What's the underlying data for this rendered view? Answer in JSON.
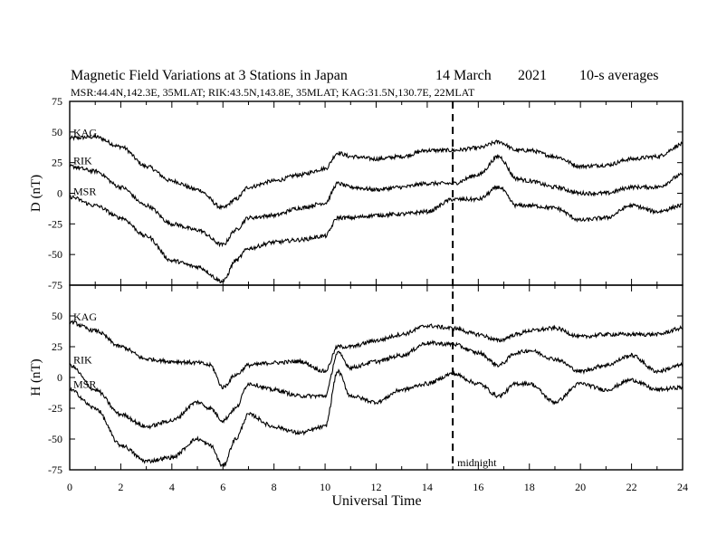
{
  "chart_data": {
    "type": "line",
    "title": "Magnetic Field Variations at 3 Stations in Japan",
    "date": "14 March",
    "year": "2021",
    "averaging": "10-s averages",
    "subtitle": "MSR:44.4N,142.3E, 35MLAT;  RIK:43.5N,143.8E, 35MLAT;  KAG:31.5N,130.7E, 22MLAT",
    "xlabel": "Universal Time",
    "xlim": [
      0,
      24
    ],
    "xticks": [
      "0",
      "2",
      "4",
      "6",
      "8",
      "10",
      "12",
      "14",
      "16",
      "18",
      "20",
      "22",
      "24"
    ],
    "marker": {
      "x": 15,
      "label": "midnight",
      "style": "dashed"
    },
    "line_color": "#000000",
    "panels": [
      {
        "ylabel": "D (nT)",
        "ylim": [
          -75,
          75
        ],
        "yticks": [
          "75",
          "50",
          "25",
          "0",
          "-25",
          "-50",
          "-75"
        ],
        "series": [
          {
            "name": "KAG",
            "x": [
              0,
              1,
              2,
              3,
              4,
              5,
              6,
              6.5,
              7,
              8,
              9,
              10,
              10.5,
              11,
              12,
              13,
              14,
              15,
              16,
              16.8,
              17.5,
              18,
              19,
              20,
              21,
              22,
              23,
              24
            ],
            "values": [
              45,
              46,
              38,
              22,
              10,
              3,
              -12,
              -5,
              5,
              10,
              15,
              20,
              33,
              30,
              28,
              30,
              35,
              35,
              37,
              42,
              35,
              35,
              30,
              22,
              23,
              28,
              30,
              40
            ]
          },
          {
            "name": "RIK",
            "x": [
              0,
              1,
              2,
              3,
              4,
              5,
              6,
              6.5,
              7,
              8,
              9,
              10,
              10.5,
              11,
              12,
              13,
              14,
              15,
              16,
              16.8,
              17.5,
              18,
              19,
              20,
              21,
              22,
              23,
              24
            ],
            "values": [
              22,
              18,
              5,
              -10,
              -25,
              -30,
              -42,
              -30,
              -20,
              -18,
              -12,
              -8,
              8,
              5,
              3,
              5,
              8,
              8,
              15,
              30,
              12,
              10,
              5,
              0,
              0,
              5,
              5,
              15
            ]
          },
          {
            "name": "MSR",
            "x": [
              0,
              1,
              2,
              3,
              4,
              5,
              6,
              6.5,
              7,
              8,
              9,
              10,
              10.5,
              11,
              12,
              13,
              14,
              15,
              16,
              16.8,
              17.5,
              18,
              19,
              20,
              21,
              22,
              23,
              24
            ],
            "values": [
              -3,
              -10,
              -20,
              -35,
              -55,
              -60,
              -72,
              -55,
              -45,
              -40,
              -38,
              -35,
              -20,
              -20,
              -18,
              -17,
              -15,
              -5,
              -5,
              5,
              -10,
              -10,
              -12,
              -22,
              -20,
              -10,
              -15,
              -10
            ]
          }
        ]
      },
      {
        "ylabel": "H (nT)",
        "ylim": [
          -75,
          75
        ],
        "yticks": [
          "50",
          "25",
          "0",
          "-25",
          "-50",
          "-75"
        ],
        "series": [
          {
            "name": "KAG",
            "x": [
              0,
              1,
              2,
              3,
              4,
              5,
              5.5,
              6,
              6.5,
              7,
              8,
              9,
              10,
              10.5,
              11,
              12,
              13,
              14,
              15,
              16,
              16.8,
              17.5,
              18,
              19,
              20,
              21,
              22,
              23,
              24
            ],
            "values": [
              45,
              38,
              25,
              15,
              13,
              12,
              10,
              -8,
              2,
              10,
              12,
              13,
              5,
              25,
              25,
              30,
              35,
              42,
              40,
              35,
              30,
              35,
              38,
              40,
              33,
              35,
              35,
              35,
              40
            ]
          },
          {
            "name": "RIK",
            "x": [
              0,
              1,
              2,
              3,
              4,
              5,
              5.5,
              6,
              6.5,
              7,
              8,
              9,
              10,
              10.5,
              11,
              12,
              13,
              14,
              15,
              16,
              16.8,
              17.5,
              18,
              19,
              20,
              21,
              22,
              23,
              24
            ],
            "values": [
              10,
              -10,
              -30,
              -40,
              -35,
              -20,
              -25,
              -35,
              -25,
              -5,
              -10,
              -15,
              -15,
              20,
              8,
              13,
              18,
              28,
              27,
              20,
              10,
              20,
              22,
              15,
              5,
              10,
              18,
              5,
              10
            ]
          },
          {
            "name": "MSR",
            "x": [
              0,
              1,
              2,
              3,
              4,
              5,
              5.5,
              6,
              6.5,
              7,
              8,
              9,
              10,
              10.5,
              11,
              12,
              13,
              14,
              15,
              16,
              16.8,
              17.5,
              18,
              19,
              20,
              21,
              22,
              23,
              24
            ],
            "values": [
              -10,
              -25,
              -55,
              -68,
              -65,
              -50,
              -55,
              -72,
              -50,
              -30,
              -40,
              -45,
              -40,
              5,
              -15,
              -20,
              -10,
              -5,
              3,
              -5,
              -15,
              -5,
              -5,
              -20,
              -5,
              -10,
              -2,
              -10,
              -8
            ]
          }
        ]
      }
    ]
  }
}
